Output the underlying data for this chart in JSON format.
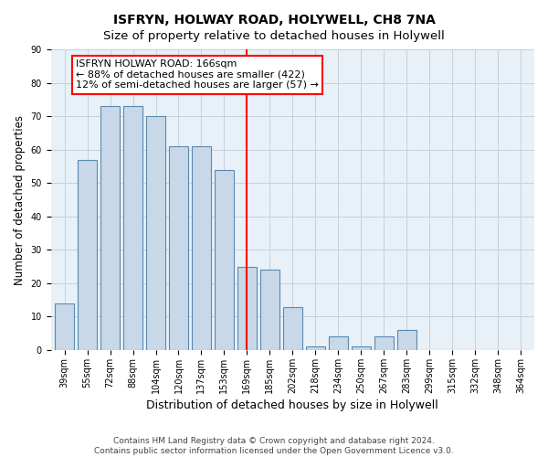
{
  "title": "ISFRYN, HOLWAY ROAD, HOLYWELL, CH8 7NA",
  "subtitle": "Size of property relative to detached houses in Holywell",
  "xlabel": "Distribution of detached houses by size in Holywell",
  "ylabel": "Number of detached properties",
  "categories": [
    "39sqm",
    "55sqm",
    "72sqm",
    "88sqm",
    "104sqm",
    "120sqm",
    "137sqm",
    "153sqm",
    "169sqm",
    "185sqm",
    "202sqm",
    "218sqm",
    "234sqm",
    "250sqm",
    "267sqm",
    "283sqm",
    "299sqm",
    "315sqm",
    "332sqm",
    "348sqm",
    "364sqm"
  ],
  "values": [
    14,
    57,
    73,
    73,
    70,
    61,
    61,
    54,
    25,
    24,
    13,
    1,
    4,
    1,
    4,
    6,
    0,
    0,
    0,
    0,
    0
  ],
  "bar_color": "#c8d8e8",
  "bar_edge_color": "#5a8ab0",
  "vline_x": 8,
  "vline_color": "red",
  "annotation_line1": "ISFRYN HOLWAY ROAD: 166sqm",
  "annotation_line2": "← 88% of detached houses are smaller (422)",
  "annotation_line3": "12% of semi-detached houses are larger (57) →",
  "annotation_box_color": "white",
  "annotation_box_edge_color": "red",
  "ylim": [
    0,
    90
  ],
  "yticks": [
    0,
    10,
    20,
    30,
    40,
    50,
    60,
    70,
    80,
    90
  ],
  "grid_color": "#c8d0d8",
  "background_color": "#e8f0f8",
  "footer": "Contains HM Land Registry data © Crown copyright and database right 2024.\nContains public sector information licensed under the Open Government Licence v3.0.",
  "title_fontsize": 10,
  "subtitle_fontsize": 9.5,
  "xlabel_fontsize": 9,
  "ylabel_fontsize": 8.5,
  "tick_fontsize": 7,
  "annotation_fontsize": 8,
  "footer_fontsize": 6.5
}
